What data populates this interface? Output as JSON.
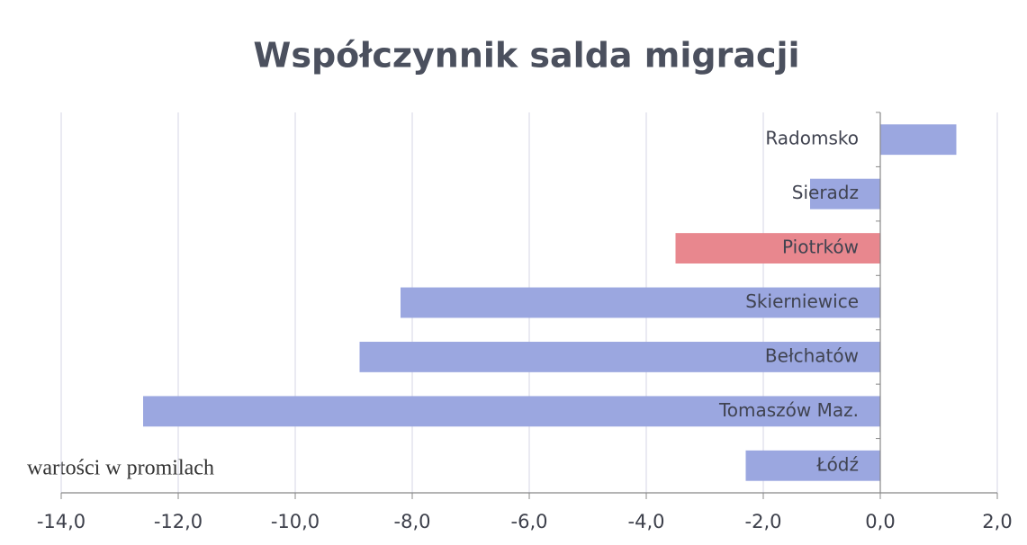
{
  "chart_data": {
    "type": "bar",
    "orientation": "horizontal",
    "title": "Współczynnik salda migracji",
    "annotation": "wartości w promilach",
    "categories": [
      "Radomsko",
      "Sieradz",
      "Piotrków",
      "Skierniewice",
      "Bełchatów",
      "Tomaszów Maz.",
      "Łódź"
    ],
    "values": [
      1.3,
      -1.2,
      -3.5,
      -8.2,
      -8.9,
      -12.6,
      -2.3
    ],
    "colors": [
      "#9ba7e0",
      "#9ba7e0",
      "#e8878e",
      "#9ba7e0",
      "#9ba7e0",
      "#9ba7e0",
      "#9ba7e0"
    ],
    "xlim": [
      -14,
      2
    ],
    "xticks": [
      {
        "value": -14,
        "label": "-14,0"
      },
      {
        "value": -12,
        "label": "-12,0"
      },
      {
        "value": -10,
        "label": "-10,0"
      },
      {
        "value": -8,
        "label": "-8,0"
      },
      {
        "value": -6,
        "label": "-6,0"
      },
      {
        "value": -4,
        "label": "-4,0"
      },
      {
        "value": -2,
        "label": "-2,0"
      },
      {
        "value": 0,
        "label": "0,0"
      },
      {
        "value": 2,
        "label": "2,0"
      }
    ],
    "grid": true
  }
}
